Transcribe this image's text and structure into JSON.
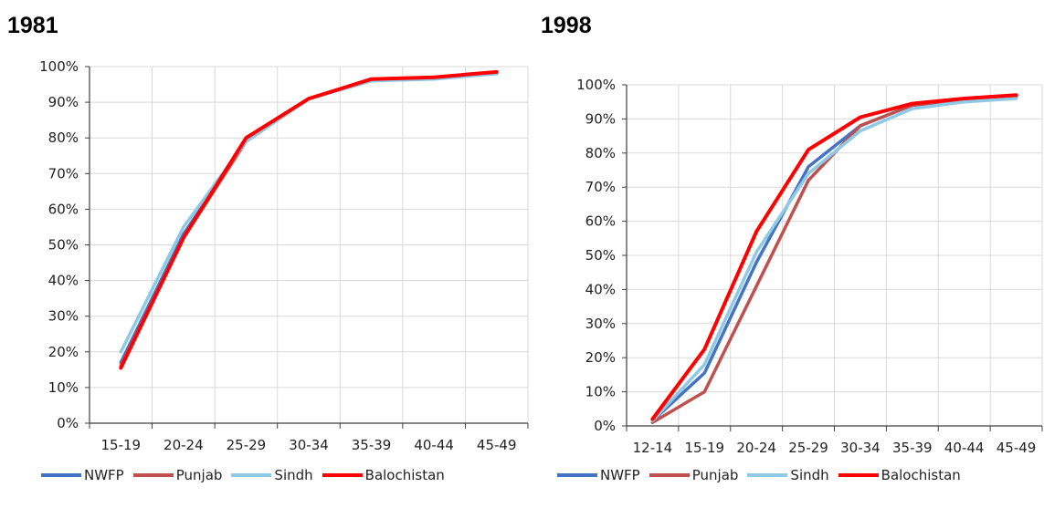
{
  "chart_data": [
    {
      "type": "line",
      "title": "1981",
      "categories": [
        "15-19",
        "20-24",
        "25-29",
        "30-34",
        "35-39",
        "40-44",
        "45-49"
      ],
      "ylim": [
        0,
        100
      ],
      "yticks": [
        "0%",
        "10%",
        "20%",
        "30%",
        "40%",
        "50%",
        "60%",
        "70%",
        "80%",
        "90%",
        "100%"
      ],
      "grid": true,
      "legend_position": "bottom",
      "series": [
        {
          "name": "NWFP",
          "color": "#4472C4",
          "values": [
            17,
            53,
            79,
            91,
            96,
            97,
            98
          ]
        },
        {
          "name": "Punjab",
          "color": "#C0504D",
          "values": [
            16,
            52,
            79,
            91,
            96.5,
            97,
            98.5
          ]
        },
        {
          "name": "Sindh",
          "color": "#8ECAE6",
          "values": [
            20,
            55,
            79,
            91,
            96,
            96.5,
            98
          ]
        },
        {
          "name": "Balochistan",
          "color": "#FF0000",
          "values": [
            15.5,
            52,
            80,
            91,
            96.5,
            97,
            98.5
          ]
        }
      ]
    },
    {
      "type": "line",
      "title": "1998",
      "categories": [
        "12-14",
        "15-19",
        "20-24",
        "25-29",
        "30-34",
        "35-39",
        "40-44",
        "45-49"
      ],
      "ylim": [
        0,
        100
      ],
      "yticks": [
        "0%",
        "10%",
        "20%",
        "30%",
        "40%",
        "50%",
        "60%",
        "70%",
        "80%",
        "90%",
        "100%"
      ],
      "grid": true,
      "legend_position": "bottom",
      "series": [
        {
          "name": "NWFP",
          "color": "#4472C4",
          "values": [
            1.5,
            15.5,
            48,
            76,
            88,
            94,
            95.5,
            96.5
          ]
        },
        {
          "name": "Punjab",
          "color": "#C0504D",
          "values": [
            1,
            10,
            41,
            72,
            88,
            94,
            95.5,
            96.5
          ]
        },
        {
          "name": "Sindh",
          "color": "#8ECAE6",
          "values": [
            1.5,
            18,
            51,
            74,
            86.5,
            93,
            95,
            96
          ]
        },
        {
          "name": "Balochistan",
          "color": "#FF0000",
          "values": [
            2,
            22.5,
            57,
            81,
            90.5,
            94.5,
            96,
            97
          ]
        }
      ]
    }
  ]
}
